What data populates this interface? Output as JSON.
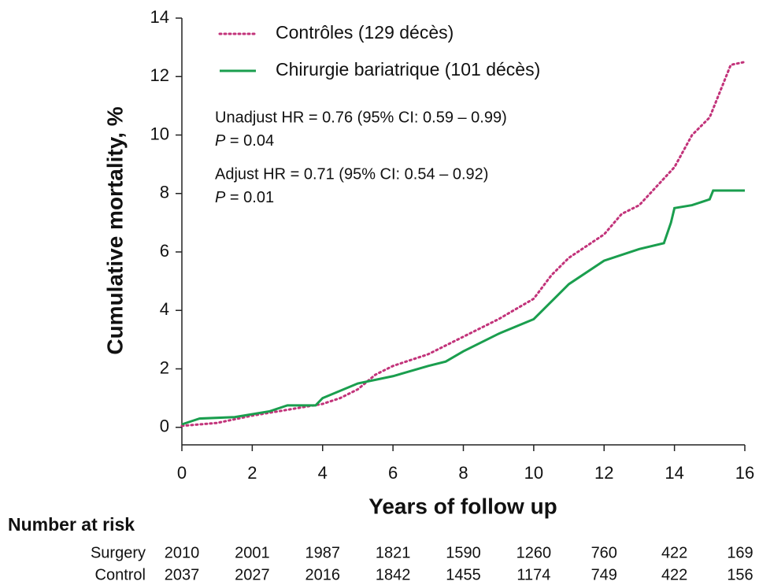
{
  "chart_data": {
    "type": "line",
    "y_label": "Cumulative mortality, %",
    "x_label": "Years of follow up",
    "xlim": [
      0,
      16
    ],
    "xticks": [
      0,
      2,
      4,
      6,
      8,
      10,
      12,
      14,
      16
    ],
    "ylim": [
      -0.6,
      14
    ],
    "yticks": [
      0,
      2,
      4,
      6,
      8,
      10,
      12,
      14
    ],
    "series": [
      {
        "name": "Contrôles (129 décès)",
        "color": "#c2337a",
        "dash": "dotted",
        "x": [
          0,
          1,
          2,
          3,
          4,
          4.5,
          5,
          5.5,
          6,
          7,
          8,
          9,
          10,
          10.5,
          11,
          12,
          12.5,
          13,
          14,
          14.5,
          15,
          15.3,
          15.6,
          16
        ],
        "values": [
          0.05,
          0.15,
          0.4,
          0.6,
          0.8,
          1.0,
          1.3,
          1.8,
          2.1,
          2.5,
          3.1,
          3.7,
          4.4,
          5.2,
          5.8,
          6.6,
          7.3,
          7.6,
          8.9,
          10.0,
          10.6,
          11.5,
          12.4,
          12.5
        ]
      },
      {
        "name": "Chirurgie bariatrique (101 décès)",
        "color": "#1a9e4e",
        "dash": "solid",
        "x": [
          0,
          0.5,
          1.5,
          2.5,
          3,
          3.8,
          4,
          5,
          6,
          7,
          7.5,
          8,
          9,
          10,
          10.5,
          11,
          12,
          13,
          13.7,
          13.9,
          14,
          14.5,
          15,
          15.1,
          16
        ],
        "values": [
          0.1,
          0.3,
          0.35,
          0.55,
          0.75,
          0.75,
          1.0,
          1.5,
          1.75,
          2.1,
          2.25,
          2.6,
          3.2,
          3.7,
          4.3,
          4.9,
          5.7,
          6.1,
          6.3,
          7.0,
          7.5,
          7.6,
          7.8,
          8.1,
          8.1
        ]
      }
    ],
    "annotations": [
      "Unadjust HR = 0.76 (95% CI: 0.59 – 0.99)",
      "P = 0.04",
      "Adjust HR = 0.71 (95% CI: 0.54 – 0.92)",
      "P = 0.01"
    ],
    "risk_table": {
      "title": "Number at risk",
      "rows": [
        {
          "name": "Surgery",
          "values": [
            2010,
            2001,
            1987,
            1821,
            1590,
            1260,
            760,
            422,
            169
          ]
        },
        {
          "name": "Control",
          "values": [
            2037,
            2027,
            2016,
            1842,
            1455,
            1174,
            749,
            422,
            156
          ]
        }
      ]
    }
  }
}
